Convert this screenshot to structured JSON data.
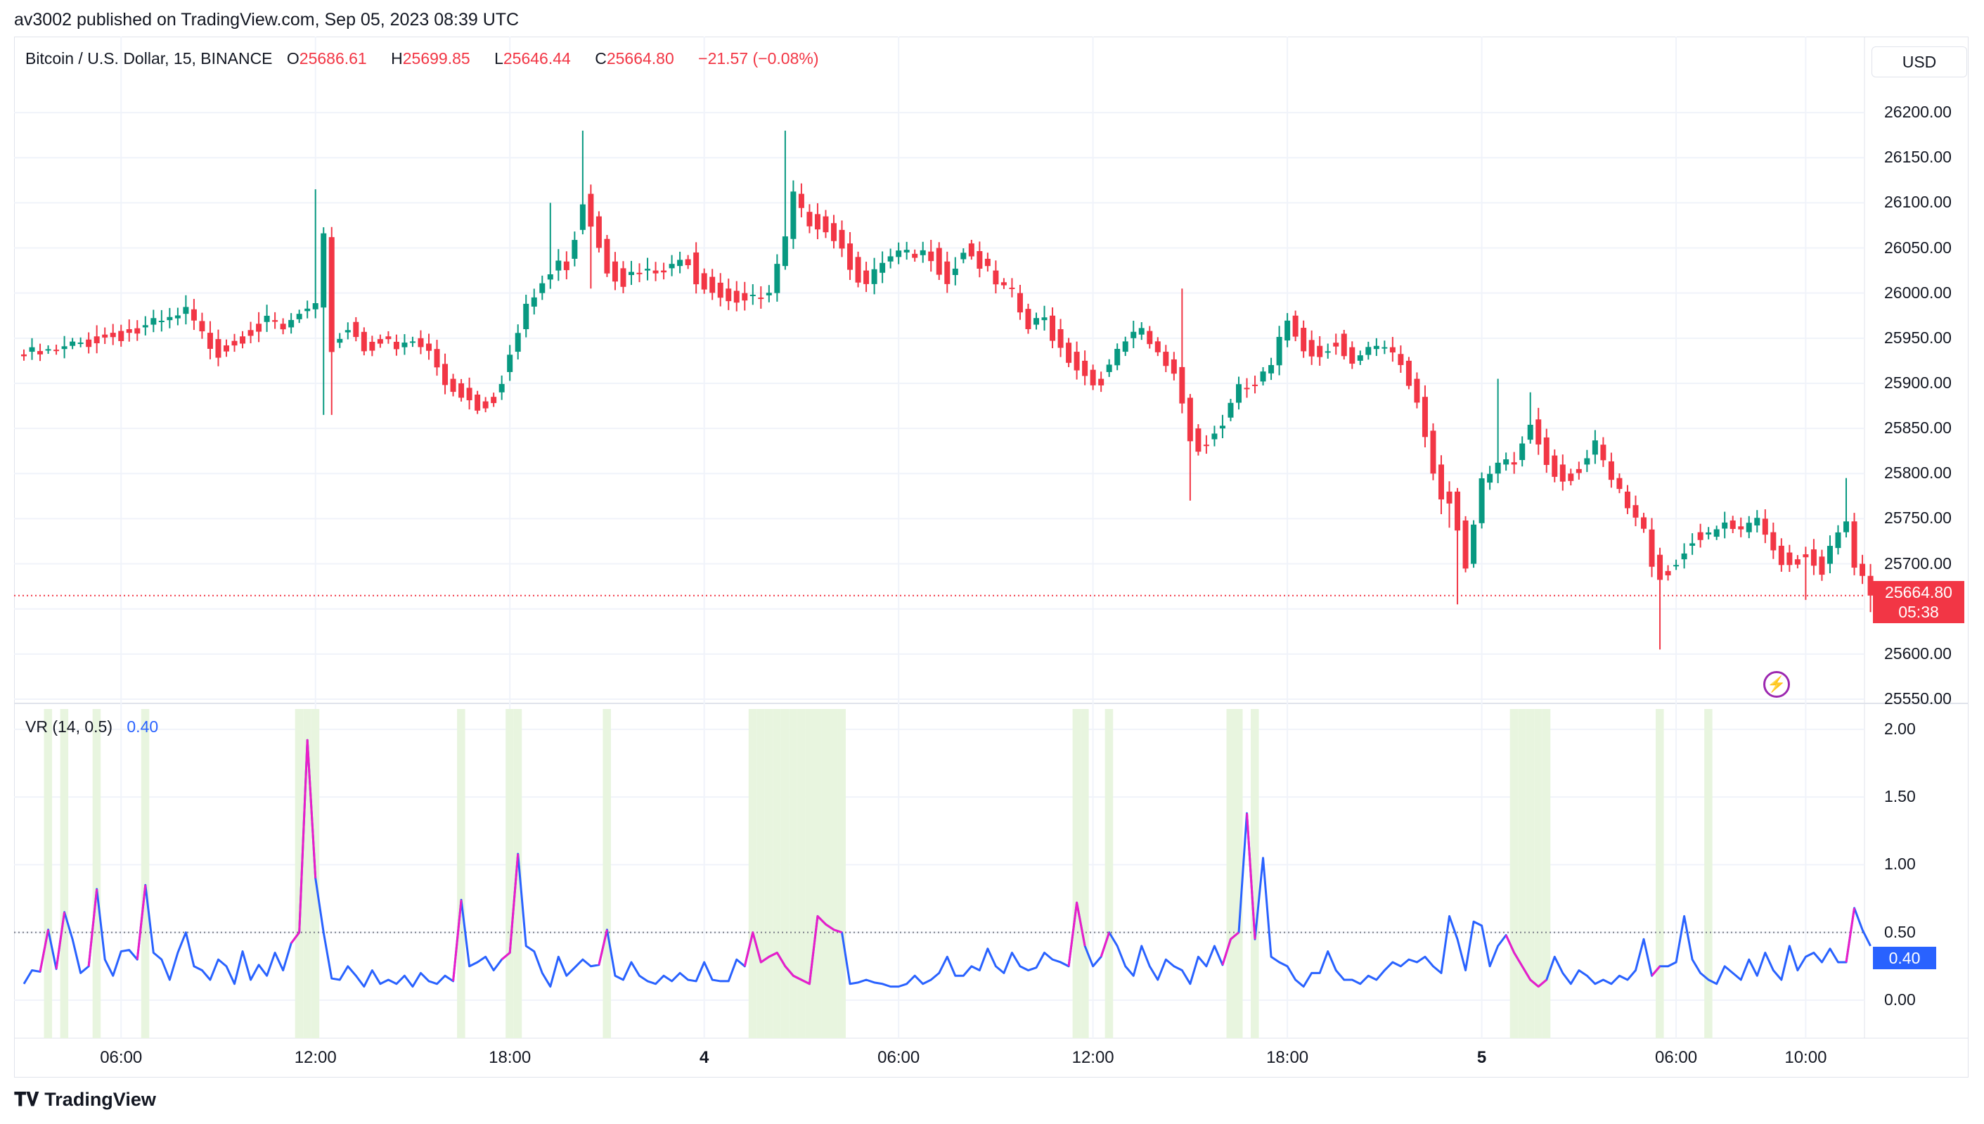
{
  "header": "av3002 published on TradingView.com, Sep 05, 2023 08:39 UTC",
  "legend": {
    "symbol": "Bitcoin / U.S. Dollar, 15, BINANCE",
    "o_label": "O",
    "o_value": "25686.61",
    "h_label": "H",
    "h_value": "25699.85",
    "l_label": "L",
    "l_value": "25646.44",
    "c_label": "C",
    "c_value": "25664.80",
    "change": "−21.57 (−0.08%)"
  },
  "vr_legend": {
    "name": "VR (14, 0.5)",
    "value": "0.40"
  },
  "currency_button": "USD",
  "last_price": {
    "price": "25664.80",
    "countdown": "05:38"
  },
  "vr_last": "0.40",
  "flash_icon": "lightning-bolt-icon",
  "brand": "TradingView",
  "colors": {
    "up": "#089981",
    "down": "#f23645",
    "vr_line": "#2962ff",
    "vr_highlight": "#e91ec8",
    "band": "#e8f5df"
  },
  "chart_data": [
    {
      "type": "candlestick",
      "title": "Bitcoin / U.S. Dollar, 15, BINANCE",
      "ylim": [
        25550,
        26225
      ],
      "y_ticks": [
        "26200.00",
        "26150.00",
        "26100.00",
        "26050.00",
        "26000.00",
        "25950.00",
        "25900.00",
        "25850.00",
        "25800.00",
        "25750.00",
        "25700.00",
        "25650.00",
        "25600.00",
        "25550.00"
      ],
      "x_ticks": [
        "06:00",
        "12:00",
        "18:00",
        "4",
        "06:00",
        "12:00",
        "18:00",
        "5",
        "06:00",
        "10:00"
      ],
      "x_tick_bars": [
        12,
        36,
        60,
        84,
        108,
        132,
        156,
        180,
        204,
        220
      ],
      "last_price": 25664.8,
      "grid": true,
      "anchors": [
        [
          0,
          25935
        ],
        [
          4,
          25938
        ],
        [
          8,
          25952
        ],
        [
          12,
          25960
        ],
        [
          14,
          25962
        ],
        [
          16,
          25968
        ],
        [
          18,
          25972
        ],
        [
          20,
          25982
        ],
        [
          22,
          25956
        ],
        [
          24,
          25942
        ],
        [
          26,
          25952
        ],
        [
          28,
          25966
        ],
        [
          30,
          25970
        ],
        [
          32,
          25962
        ],
        [
          34,
          25980
        ],
        [
          36,
          25984
        ],
        [
          37,
          26062
        ],
        [
          38,
          25945
        ],
        [
          40,
          25968
        ],
        [
          42,
          25946
        ],
        [
          44,
          25952
        ],
        [
          46,
          25940
        ],
        [
          48,
          25950
        ],
        [
          50,
          25938
        ],
        [
          52,
          25905
        ],
        [
          54,
          25895
        ],
        [
          56,
          25880
        ],
        [
          58,
          25890
        ],
        [
          60,
          25935
        ],
        [
          62,
          25985
        ],
        [
          64,
          26015
        ],
        [
          66,
          26035
        ],
        [
          67,
          26038
        ],
        [
          68,
          26070
        ],
        [
          69,
          26110
        ],
        [
          70,
          26085
        ],
        [
          72,
          26035
        ],
        [
          74,
          26020
        ],
        [
          76,
          26025
        ],
        [
          78,
          26025
        ],
        [
          80,
          26030
        ],
        [
          82,
          26045
        ],
        [
          83,
          26022
        ],
        [
          84,
          26018
        ],
        [
          86,
          26005
        ],
        [
          88,
          26000
        ],
        [
          90,
          25995
        ],
        [
          92,
          26000
        ],
        [
          94,
          26060
        ],
        [
          95,
          26110
        ],
        [
          96,
          26090
        ],
        [
          98,
          26085
        ],
        [
          100,
          26070
        ],
        [
          102,
          26040
        ],
        [
          104,
          26010
        ],
        [
          106,
          26035
        ],
        [
          108,
          26045
        ],
        [
          110,
          26042
        ],
        [
          112,
          26050
        ],
        [
          114,
          26020
        ],
        [
          116,
          26055
        ],
        [
          118,
          26038
        ],
        [
          120,
          26012
        ],
        [
          122,
          26000
        ],
        [
          124,
          25965
        ],
        [
          126,
          25975
        ],
        [
          128,
          25945
        ],
        [
          130,
          25925
        ],
        [
          132,
          25905
        ],
        [
          134,
          25920
        ],
        [
          136,
          25950
        ],
        [
          138,
          25958
        ],
        [
          140,
          25935
        ],
        [
          142,
          25918
        ],
        [
          144,
          25850
        ],
        [
          145,
          25832
        ],
        [
          146,
          25838
        ],
        [
          148,
          25862
        ],
        [
          150,
          25895
        ],
        [
          152,
          25902
        ],
        [
          154,
          25920
        ],
        [
          156,
          25975
        ],
        [
          158,
          25948
        ],
        [
          160,
          25935
        ],
        [
          162,
          25955
        ],
        [
          164,
          25925
        ],
        [
          166,
          25938
        ],
        [
          168,
          25940
        ],
        [
          170,
          25925
        ],
        [
          172,
          25885
        ],
        [
          174,
          25810
        ],
        [
          175,
          25780
        ],
        [
          176,
          25780
        ],
        [
          177,
          25748
        ],
        [
          178,
          25700
        ],
        [
          180,
          25790
        ],
        [
          182,
          25810
        ],
        [
          184,
          25815
        ],
        [
          186,
          25860
        ],
        [
          188,
          25820
        ],
        [
          190,
          25800
        ],
        [
          192,
          25810
        ],
        [
          194,
          25832
        ],
        [
          196,
          25795
        ],
        [
          198,
          25765
        ],
        [
          200,
          25738
        ],
        [
          201,
          25710
        ],
        [
          202,
          25692
        ],
        [
          204,
          25705
        ],
        [
          206,
          25735
        ],
        [
          208,
          25730
        ],
        [
          210,
          25748
        ],
        [
          212,
          25735
        ],
        [
          214,
          25750
        ],
        [
          216,
          25720
        ],
        [
          218,
          25705
        ],
        [
          220,
          25716
        ],
        [
          222,
          25700
        ],
        [
          224,
          25735
        ],
        [
          225,
          25747
        ],
        [
          226,
          25700
        ],
        [
          227,
          25686.61
        ],
        [
          228,
          25664.8
        ]
      ]
    },
    {
      "type": "line",
      "title": "VR (14, 0.5)",
      "ylim": [
        -0.25,
        2.15
      ],
      "y_ticks": [
        "2.00",
        "1.50",
        "1.00",
        "0.50",
        "0.00"
      ],
      "threshold": 0.5,
      "x_ticks": [
        "06:00",
        "12:00",
        "18:00",
        "4",
        "06:00",
        "12:00",
        "18:00",
        "5",
        "06:00",
        "10:00"
      ],
      "values": [
        0.12,
        0.22,
        0.21,
        0.52,
        0.23,
        0.65,
        0.45,
        0.2,
        0.25,
        0.82,
        0.3,
        0.18,
        0.36,
        0.37,
        0.3,
        0.85,
        0.35,
        0.3,
        0.15,
        0.35,
        0.5,
        0.25,
        0.22,
        0.15,
        0.3,
        0.25,
        0.12,
        0.36,
        0.15,
        0.26,
        0.18,
        0.35,
        0.22,
        0.42,
        0.5,
        1.92,
        0.9,
        0.5,
        0.16,
        0.15,
        0.25,
        0.18,
        0.1,
        0.22,
        0.12,
        0.15,
        0.12,
        0.18,
        0.1,
        0.2,
        0.14,
        0.12,
        0.18,
        0.14,
        0.74,
        0.25,
        0.28,
        0.32,
        0.22,
        0.3,
        0.35,
        1.08,
        0.4,
        0.36,
        0.2,
        0.1,
        0.32,
        0.18,
        0.24,
        0.3,
        0.25,
        0.26,
        0.52,
        0.18,
        0.15,
        0.28,
        0.18,
        0.14,
        0.12,
        0.18,
        0.14,
        0.2,
        0.15,
        0.14,
        0.28,
        0.15,
        0.14,
        0.14,
        0.3,
        0.25,
        0.5,
        0.28,
        0.32,
        0.35,
        0.25,
        0.18,
        0.15,
        0.12,
        0.62,
        0.56,
        0.52,
        0.5,
        0.12,
        0.13,
        0.15,
        0.13,
        0.12,
        0.1,
        0.1,
        0.12,
        0.18,
        0.12,
        0.15,
        0.2,
        0.32,
        0.18,
        0.18,
        0.25,
        0.22,
        0.38,
        0.25,
        0.2,
        0.35,
        0.25,
        0.22,
        0.24,
        0.35,
        0.3,
        0.28,
        0.25,
        0.72,
        0.4,
        0.25,
        0.32,
        0.5,
        0.4,
        0.25,
        0.18,
        0.4,
        0.25,
        0.15,
        0.3,
        0.25,
        0.22,
        0.12,
        0.32,
        0.25,
        0.4,
        0.26,
        0.45,
        0.5,
        1.38,
        0.45,
        1.05,
        0.32,
        0.28,
        0.25,
        0.15,
        0.1,
        0.2,
        0.2,
        0.36,
        0.22,
        0.15,
        0.15,
        0.12,
        0.18,
        0.15,
        0.22,
        0.28,
        0.25,
        0.3,
        0.28,
        0.32,
        0.25,
        0.2,
        0.62,
        0.45,
        0.22,
        0.58,
        0.55,
        0.25,
        0.4,
        0.48,
        0.35,
        0.25,
        0.15,
        0.1,
        0.15,
        0.32,
        0.2,
        0.12,
        0.22,
        0.18,
        0.12,
        0.15,
        0.12,
        0.18,
        0.15,
        0.22,
        0.45,
        0.18,
        0.25,
        0.25,
        0.28,
        0.62,
        0.3,
        0.2,
        0.15,
        0.12,
        0.25,
        0.2,
        0.15,
        0.3,
        0.18,
        0.35,
        0.22,
        0.15,
        0.4,
        0.22,
        0.32,
        0.35,
        0.28,
        0.38,
        0.28,
        0.28,
        0.68,
        0.52,
        0.4
      ],
      "highlight_bars": [
        3,
        5,
        9,
        15,
        34,
        35,
        36,
        54,
        60,
        61,
        72,
        90,
        91,
        92,
        93,
        94,
        95,
        96,
        97,
        98,
        99,
        100,
        101,
        130,
        131,
        134,
        149,
        150,
        152,
        184,
        185,
        186,
        187,
        188,
        202,
        208
      ],
      "highlight_segments": [
        [
          2,
          3
        ],
        [
          4,
          5
        ],
        [
          8,
          9
        ],
        [
          14,
          15
        ],
        [
          33,
          36
        ],
        [
          53,
          54
        ],
        [
          59,
          61
        ],
        [
          71,
          72
        ],
        [
          89,
          101
        ],
        [
          129,
          131
        ],
        [
          133,
          134
        ],
        [
          148,
          150
        ],
        [
          151,
          152
        ],
        [
          183,
          188
        ],
        [
          201,
          202
        ],
        [
          225,
          226
        ]
      ],
      "grid": true
    }
  ]
}
